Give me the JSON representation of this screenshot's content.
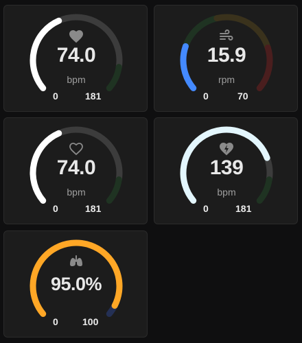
{
  "gauges": [
    {
      "value": "74.0",
      "unit": "bpm",
      "min": "0",
      "max": "181",
      "fraction": 0.409,
      "icon": "heart-filled-icon",
      "color": "#ffffff",
      "track": "neutral"
    },
    {
      "value": "15.9",
      "unit": "rpm",
      "min": "0",
      "max": "70",
      "fraction": 0.227,
      "icon": "wind-icon",
      "color": "#448aff",
      "track": "severity"
    },
    {
      "value": "74.0",
      "unit": "bpm",
      "min": "0",
      "max": "181",
      "fraction": 0.409,
      "icon": "heart-outline-icon",
      "color": "#ffffff",
      "track": "neutral"
    },
    {
      "value": "139",
      "unit": "bpm",
      "min": "0",
      "max": "181",
      "fraction": 0.768,
      "icon": "heart-pulse-icon",
      "color": "#e3f6fd",
      "track": "neutral"
    },
    {
      "value": "95.0%",
      "unit": "",
      "min": "0",
      "max": "100",
      "fraction": 0.95,
      "icon": "lungs-icon",
      "color": "#ffa726",
      "track": "blue-end"
    }
  ]
}
